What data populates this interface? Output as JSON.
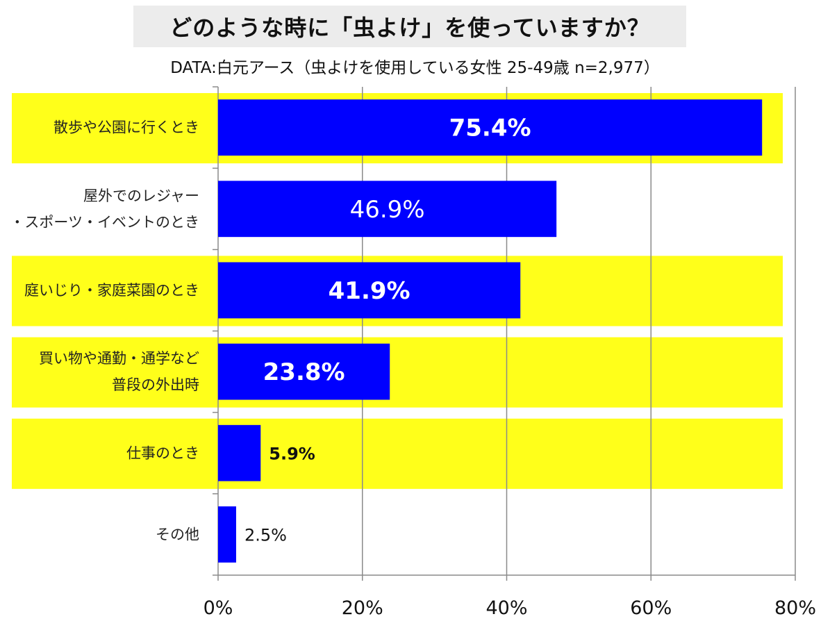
{
  "title": "どのような時に「虫よけ」を使っていますか？",
  "subtitle": "DATA:白元アース（虫よけを使用している女性 25-49歳 n=2,977）",
  "colors": {
    "bar": "#0000ff",
    "highlight": "#ffff1a",
    "grid": "#8a8a8a"
  },
  "chart_data": {
    "type": "bar",
    "orientation": "horizontal",
    "title": "どのような時に「虫よけ」を使っていますか？",
    "subtitle": "DATA:白元アース（虫よけを使用している女性 25-49歳 n=2,977）",
    "unit": "%",
    "xlim": [
      0,
      80
    ],
    "ticks": [
      0,
      20,
      40,
      60,
      80
    ],
    "tick_labels": [
      "0%",
      "20%",
      "40%",
      "60%",
      "80%"
    ],
    "categories": [
      {
        "lines": [
          "散歩や公園に行くとき"
        ],
        "value": 75.4,
        "label": "75.4%",
        "highlight": true,
        "label_bold": true
      },
      {
        "lines": [
          "屋外でのレジャー",
          "・スポーツ・イベントのとき"
        ],
        "value": 46.9,
        "label": "46.9%",
        "highlight": false,
        "label_bold": false
      },
      {
        "lines": [
          "庭いじり・家庭菜園のとき"
        ],
        "value": 41.9,
        "label": "41.9%",
        "highlight": true,
        "label_bold": true
      },
      {
        "lines": [
          "買い物や通勤・通学など",
          "普段の外出時"
        ],
        "value": 23.8,
        "label": "23.8%",
        "highlight": true,
        "label_bold": true
      },
      {
        "lines": [
          "仕事のとき"
        ],
        "value": 5.9,
        "label": "5.9%",
        "highlight": true,
        "label_bold": true
      },
      {
        "lines": [
          "その他"
        ],
        "value": 2.5,
        "label": "2.5%",
        "highlight": false,
        "label_bold": false
      }
    ]
  }
}
